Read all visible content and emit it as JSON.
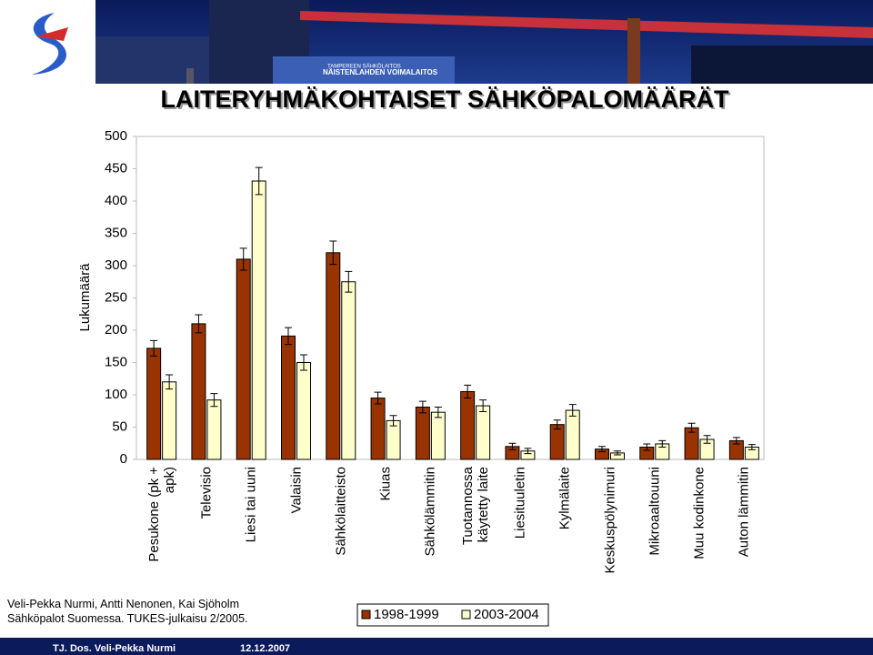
{
  "header": {
    "sign_top": "TAMPEREEN SÄHKÖLAITOS",
    "sign": "NÄISTENLAHDEN VOIMALAITOS"
  },
  "chart_data": {
    "type": "bar",
    "title": "LAITERYHMÄKOHTAISET SÄHKÖPALOMÄÄRÄT",
    "y_label": "Lukumäärä",
    "categories": [
      "Pesukone (pk +\napk)",
      "Televisio",
      "Liesi tai uuni",
      "Valaisin",
      "Sähkölaitteisto",
      "Kiuas",
      "Sähkölämmitin",
      "Tuotannossa\nkäytetty laite",
      "Liesituuletin",
      "Kylmälaite",
      "Keskuspölynimuri",
      "Mikroaaltouuni",
      "Muu kodinkone",
      "Auton lämmitin"
    ],
    "series": [
      {
        "name": "1998-1999",
        "color": "#993300",
        "values": [
          172,
          210,
          310,
          191,
          320,
          95,
          81,
          105,
          20,
          54,
          16,
          19,
          49,
          29
        ],
        "errors": [
          12,
          14,
          17,
          13,
          18,
          9,
          9,
          10,
          5,
          7,
          4,
          5,
          7,
          5
        ]
      },
      {
        "name": "2003-2004",
        "color": "#ffffcc",
        "values": [
          120,
          92,
          431,
          150,
          275,
          60,
          73,
          83,
          13,
          76,
          10,
          24,
          31,
          19
        ],
        "errors": [
          11,
          10,
          21,
          12,
          16,
          8,
          8,
          9,
          4,
          9,
          3,
          5,
          6,
          4
        ]
      }
    ],
    "ylim": [
      0,
      500
    ],
    "yticks": [
      0,
      50,
      100,
      150,
      200,
      250,
      300,
      350,
      400,
      450,
      500
    ],
    "grid": false,
    "legend": "bottom"
  },
  "footer": {
    "source": "Veli-Pekka Nurmi, Antti Nenonen, Kai Sjöholm\nSähköpalot Suomessa. TUKES-julkaisu 2/2005.",
    "author": "TJ. Dos. Veli-Pekka Nurmi",
    "date": "12.12.2007"
  }
}
